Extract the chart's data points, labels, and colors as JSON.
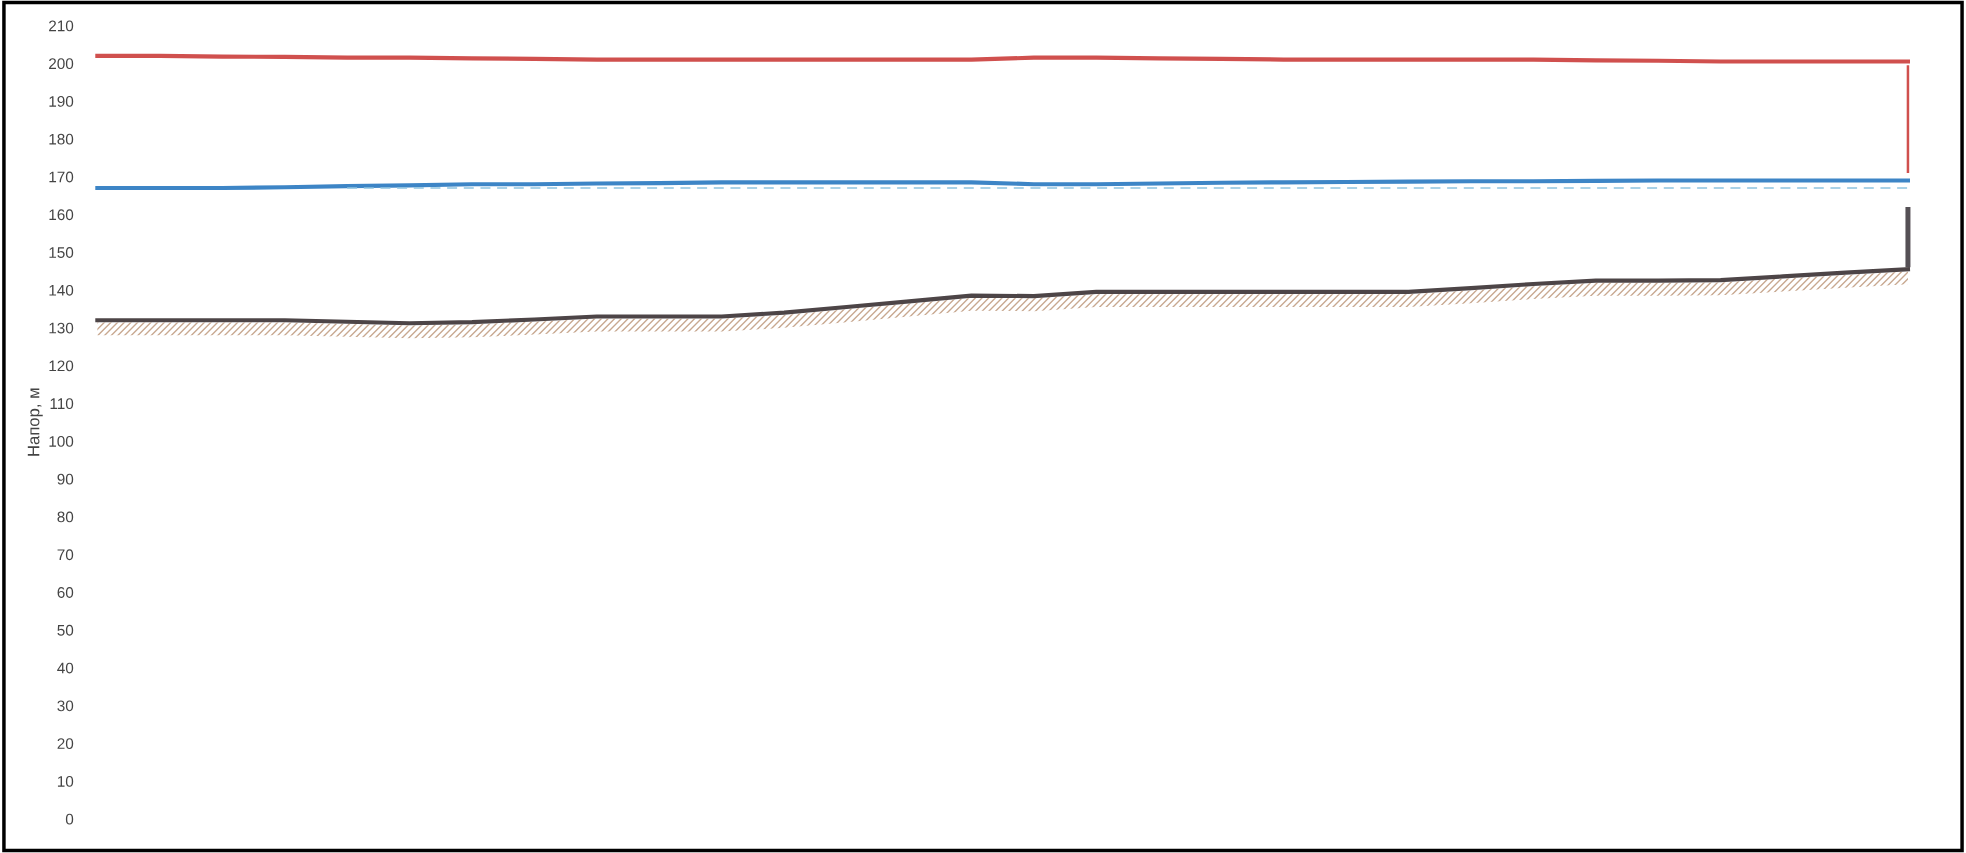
{
  "chart_data": {
    "type": "line",
    "ylabel": "Напор, м",
    "categories": [
      null,
      null,
      null,
      null,
      null,
      null,
      null,
      null,
      null,
      null,
      null,
      null,
      null,
      null,
      null,
      null,
      null,
      null,
      null,
      null,
      null,
      null,
      null,
      null,
      null,
      null,
      null,
      null,
      null,
      null
    ],
    "ylim": [
      0,
      210
    ],
    "yticks": [
      0,
      10,
      20,
      30,
      40,
      50,
      60,
      70,
      80,
      90,
      100,
      110,
      120,
      130,
      140,
      150,
      160,
      170,
      180,
      190,
      200,
      210
    ],
    "tick_labels": "y",
    "grid": false,
    "legend": false,
    "line_style": "solid",
    "marker": "none",
    "series": [
      {
        "color": "#d0504e",
        "values": [
          202,
          202,
          201.8,
          201.7,
          201.5,
          201.5,
          201.3,
          201.2,
          201,
          201,
          201,
          201,
          201,
          201,
          201,
          201.5,
          201.5,
          201.3,
          201.2,
          201,
          201,
          201,
          201,
          201,
          200.8,
          200.7,
          200.5,
          200.5,
          200.5,
          200.5
        ]
      },
      {
        "color": "#3d85c6",
        "values": [
          167,
          167,
          167,
          167.2,
          167.5,
          167.7,
          168,
          168,
          168.2,
          168.3,
          168.5,
          168.5,
          168.5,
          168.5,
          168.5,
          168,
          168,
          168.2,
          168.4,
          168.5,
          168.6,
          168.7,
          168.8,
          168.8,
          168.9,
          169,
          169,
          169,
          169,
          169
        ]
      },
      {
        "color": "#8fc4e0",
        "line_style": "dashed",
        "values": [
          null,
          null,
          null,
          null,
          167,
          167,
          167,
          167,
          167,
          167,
          167,
          167,
          167,
          167,
          167,
          167,
          167,
          167,
          167,
          167,
          167,
          167,
          167,
          167,
          167,
          167,
          167,
          167,
          167,
          167
        ]
      },
      {
        "color": "#4d4547",
        "values": [
          132,
          132,
          132,
          132,
          131.6,
          131.2,
          131.5,
          132.2,
          133,
          133,
          133,
          134,
          135.5,
          137,
          138.5,
          138.4,
          139.5,
          139.5,
          139.5,
          139.5,
          139.5,
          139.5,
          140.5,
          141.6,
          142.5,
          142.5,
          142.6,
          143.6,
          144.6,
          145.5
        ]
      },
      {
        "type": "bar",
        "color": "#d0504e",
        "base": [
          null,
          null,
          null,
          null,
          null,
          null,
          null,
          null,
          null,
          null,
          null,
          null,
          null,
          null,
          null,
          null,
          null,
          null,
          null,
          null,
          null,
          null,
          null,
          null,
          null,
          null,
          null,
          null,
          null,
          171
        ],
        "values": [
          null,
          null,
          null,
          null,
          null,
          null,
          null,
          null,
          null,
          null,
          null,
          null,
          null,
          null,
          null,
          null,
          null,
          null,
          null,
          null,
          null,
          null,
          null,
          null,
          null,
          null,
          null,
          null,
          null,
          28.5
        ]
      },
      {
        "type": "bar",
        "color": "#555055",
        "base": [
          null,
          null,
          null,
          null,
          null,
          null,
          null,
          null,
          null,
          null,
          null,
          null,
          null,
          null,
          null,
          null,
          null,
          null,
          null,
          null,
          null,
          null,
          null,
          null,
          null,
          null,
          null,
          null,
          null,
          146
        ],
        "values": [
          null,
          null,
          null,
          null,
          null,
          null,
          null,
          null,
          null,
          null,
          null,
          null,
          null,
          null,
          null,
          null,
          null,
          null,
          null,
          null,
          null,
          null,
          null,
          null,
          null,
          null,
          null,
          null,
          null,
          16
        ]
      }
    ]
  }
}
